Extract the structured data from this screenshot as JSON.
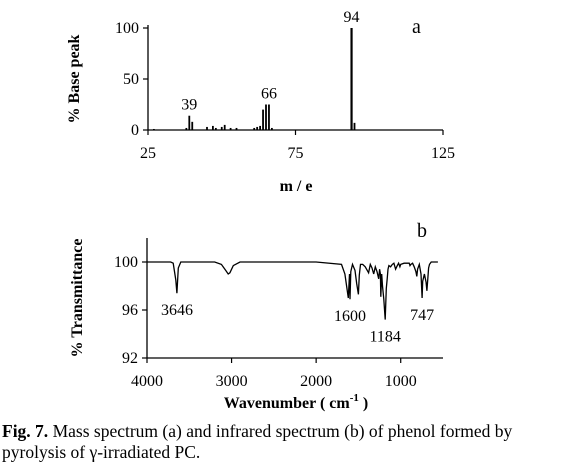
{
  "chart_data": [
    {
      "type": "bar",
      "panel_label": "a",
      "xlabel": "m / e",
      "ylabel": "% Base peak",
      "xlim": [
        25,
        125
      ],
      "ylim": [
        0,
        100
      ],
      "x_ticks": [
        25,
        75,
        125
      ],
      "y_ticks": [
        0,
        50,
        100
      ],
      "peaks": [
        {
          "x": 27,
          "y": 1
        },
        {
          "x": 38,
          "y": 2
        },
        {
          "x": 39,
          "y": 14
        },
        {
          "x": 40,
          "y": 8
        },
        {
          "x": 45,
          "y": 3
        },
        {
          "x": 47,
          "y": 4
        },
        {
          "x": 48,
          "y": 2
        },
        {
          "x": 50,
          "y": 3
        },
        {
          "x": 51,
          "y": 5
        },
        {
          "x": 53,
          "y": 2
        },
        {
          "x": 55,
          "y": 2
        },
        {
          "x": 61,
          "y": 2
        },
        {
          "x": 62,
          "y": 3
        },
        {
          "x": 63,
          "y": 4
        },
        {
          "x": 64,
          "y": 20
        },
        {
          "x": 65,
          "y": 25
        },
        {
          "x": 66,
          "y": 25
        },
        {
          "x": 67,
          "y": 2
        },
        {
          "x": 94,
          "y": 100
        },
        {
          "x": 95,
          "y": 7
        }
      ],
      "annotations": [
        {
          "x": 39,
          "y": 14,
          "text": "39"
        },
        {
          "x": 66,
          "y": 25,
          "text": "66"
        },
        {
          "x": 94,
          "y": 100,
          "text": "94"
        }
      ]
    },
    {
      "type": "line",
      "panel_label": "b",
      "xlabel": "Wavenumber ( cm",
      "xlabel_superscript": "-1",
      "xlabel_suffix": " )",
      "ylabel": "% Transmittance",
      "xlim": [
        4000,
        500
      ],
      "ylim": [
        92,
        102
      ],
      "x_ticks": [
        4000,
        3000,
        2000,
        1000
      ],
      "y_ticks": [
        92,
        96,
        100
      ],
      "series": [
        {
          "x": [
            4000,
            3720,
            3690,
            3660,
            3646,
            3630,
            3600,
            3200,
            3120,
            3070,
            3040,
            3020,
            2980,
            2900,
            2000,
            1700,
            1660,
            1620,
            1605,
            1600,
            1590,
            1570,
            1540,
            1520,
            1500,
            1490,
            1475,
            1450,
            1420,
            1380,
            1360,
            1340,
            1320,
            1300,
            1280,
            1260,
            1250,
            1240,
            1235,
            1225,
            1215,
            1200,
            1184,
            1170,
            1160,
            1150,
            1140,
            1120,
            1100,
            1080,
            1060,
            1040,
            1025,
            1010,
            1000,
            960,
            900,
            890,
            880,
            860,
            840,
            820,
            810,
            800,
            780,
            760,
            747,
            740,
            720,
            700,
            690,
            680,
            670,
            660,
            640,
            620,
            560
          ],
          "y": [
            100,
            100,
            99.9,
            98.5,
            97.4,
            99.5,
            100,
            100,
            99.8,
            99.3,
            99.0,
            99.1,
            99.7,
            100,
            100,
            99.8,
            99.0,
            97.0,
            99.0,
            96.9,
            99.2,
            99.8,
            99.3,
            98.2,
            97.3,
            98.9,
            99.8,
            99.8,
            99.6,
            99.1,
            99.8,
            99.5,
            99.0,
            99.6,
            99.2,
            98.6,
            99.4,
            99.0,
            97.1,
            99.0,
            98.0,
            96.9,
            95.2,
            97.8,
            98.6,
            99.4,
            99.7,
            99.6,
            99.8,
            99.9,
            99.4,
            99.7,
            99.9,
            99.6,
            99.8,
            99.9,
            99.9,
            99.7,
            99.8,
            99.9,
            99.6,
            99.2,
            98.8,
            99.4,
            99.8,
            99.0,
            97.0,
            98.4,
            99.0,
            98.3,
            97.6,
            98.6,
            99.5,
            99.8,
            100,
            100,
            100
          ]
        }
      ],
      "annotations": [
        {
          "x": 3646,
          "text": "3646"
        },
        {
          "x": 1600,
          "text": "1600"
        },
        {
          "x": 1184,
          "text": "1184"
        },
        {
          "x": 747,
          "text": "747"
        }
      ]
    }
  ],
  "caption": {
    "label": "Fig. 7.",
    "text": " Mass spectrum (a) and infrared spectrum (b) of phenol formed by pyrolysis of γ-irradiated PC."
  }
}
